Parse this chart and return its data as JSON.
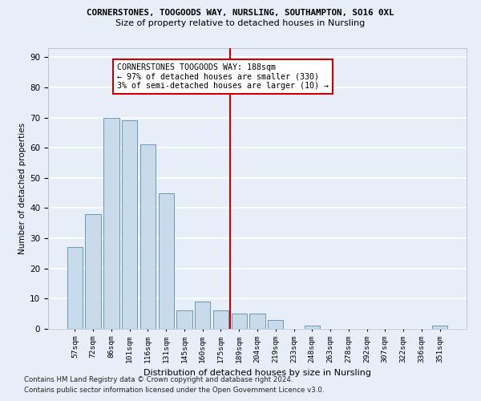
{
  "title1": "CORNERSTONES, TOOGOODS WAY, NURSLING, SOUTHAMPTON, SO16 0XL",
  "title2": "Size of property relative to detached houses in Nursling",
  "xlabel": "Distribution of detached houses by size in Nursling",
  "ylabel": "Number of detached properties",
  "categories": [
    "57sqm",
    "72sqm",
    "86sqm",
    "101sqm",
    "116sqm",
    "131sqm",
    "145sqm",
    "160sqm",
    "175sqm",
    "189sqm",
    "204sqm",
    "219sqm",
    "233sqm",
    "248sqm",
    "263sqm",
    "278sqm",
    "292sqm",
    "307sqm",
    "322sqm",
    "336sqm",
    "351sqm"
  ],
  "values": [
    27,
    38,
    70,
    69,
    61,
    45,
    6,
    9,
    6,
    5,
    5,
    3,
    0,
    1,
    0,
    0,
    0,
    0,
    0,
    0,
    1
  ],
  "bar_color": "#c9daea",
  "bar_edge_color": "#6699bb",
  "background_color": "#e8eef8",
  "grid_color": "#ffffff",
  "vline_color": "#cc0000",
  "vline_x": 8.5,
  "annotation_text": "CORNERSTONES TOOGOODS WAY: 188sqm\n← 97% of detached houses are smaller (330)\n3% of semi-detached houses are larger (10) →",
  "annotation_box_color": "#cc0000",
  "footnote1": "Contains HM Land Registry data © Crown copyright and database right 2024.",
  "footnote2": "Contains public sector information licensed under the Open Government Licence v3.0.",
  "ylim": [
    0,
    93
  ],
  "yticks": [
    0,
    10,
    20,
    30,
    40,
    50,
    60,
    70,
    80,
    90
  ]
}
